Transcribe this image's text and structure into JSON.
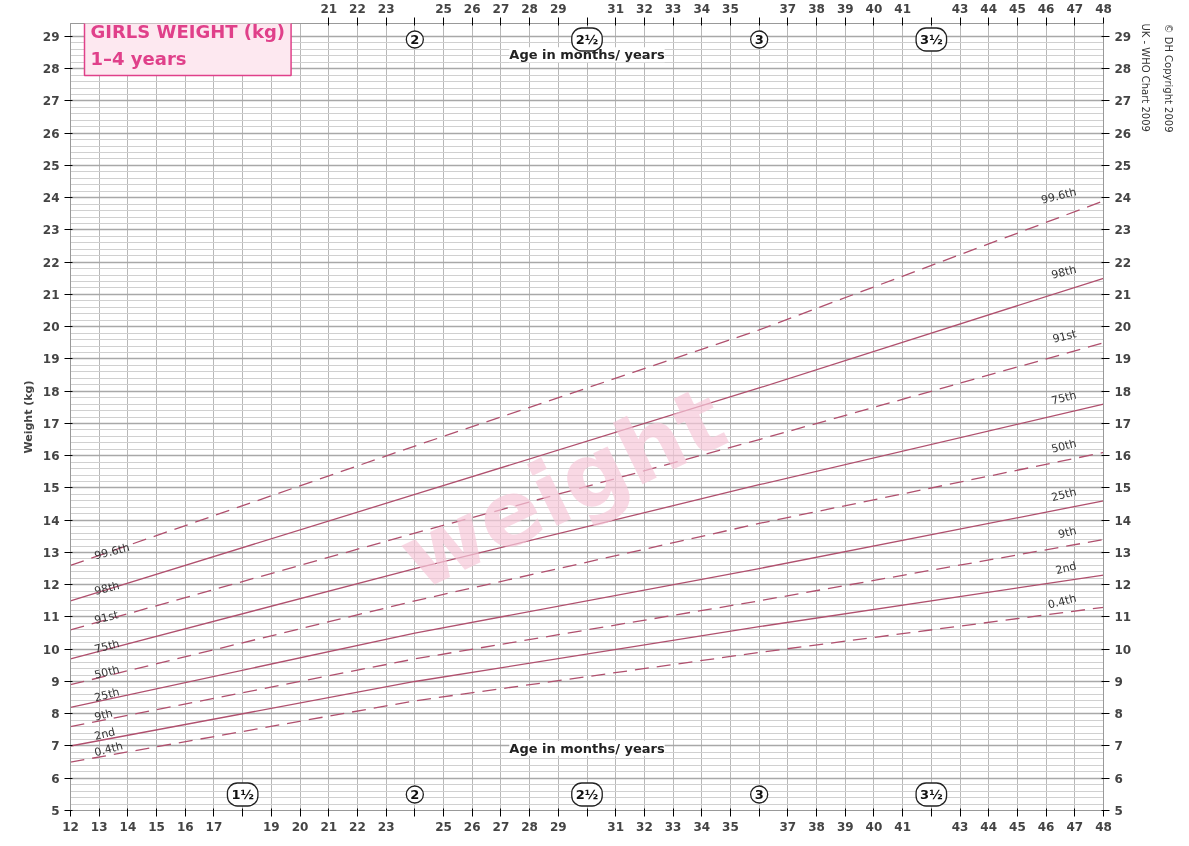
{
  "chart_data": {
    "type": "line",
    "title": "GIRLS WEIGHT (kg)",
    "subtitle": "1–4 years",
    "xlabel": "Age in months/ years",
    "x2label": "Age in months/ years",
    "ylabel": "Weight (kg)",
    "x": [
      12,
      24,
      36,
      48
    ],
    "series": [
      {
        "name": "99.6th",
        "color": "#b0506e",
        "line_style": "dashed",
        "values": [
          12.6,
          16.3,
          19.9,
          23.9
        ]
      },
      {
        "name": "98th",
        "color": "#b0506e",
        "line_style": "solid",
        "values": [
          11.5,
          14.8,
          18.1,
          21.5
        ]
      },
      {
        "name": "91st",
        "color": "#b0506e",
        "line_style": "dashed",
        "values": [
          10.6,
          13.6,
          16.5,
          19.5
        ]
      },
      {
        "name": "75th",
        "color": "#b0506e",
        "line_style": "solid",
        "values": [
          9.7,
          12.5,
          15.1,
          17.6
        ]
      },
      {
        "name": "50th",
        "color": "#b0506e",
        "line_style": "dashed",
        "values": [
          8.9,
          11.5,
          13.9,
          16.1
        ]
      },
      {
        "name": "25th",
        "color": "#b0506e",
        "line_style": "solid",
        "values": [
          8.2,
          10.5,
          12.5,
          14.6
        ]
      },
      {
        "name": "9th",
        "color": "#b0506e",
        "line_style": "dashed",
        "values": [
          7.6,
          9.7,
          11.5,
          13.4
        ]
      },
      {
        "name": "2nd",
        "color": "#b0506e",
        "line_style": "solid",
        "values": [
          7.0,
          9.0,
          10.7,
          12.3
        ]
      },
      {
        "name": "0.4th",
        "color": "#b0506e",
        "line_style": "dashed",
        "values": [
          6.5,
          8.4,
          9.9,
          11.3
        ]
      }
    ],
    "xlim": [
      12,
      48
    ],
    "ylim": [
      5,
      29.4
    ],
    "y2lim": [
      5,
      29.4
    ],
    "x2lim": [
      12,
      48
    ],
    "xticks": [
      12,
      13,
      14,
      15,
      16,
      17,
      {
        "value": 18,
        "label": null
      },
      19,
      20,
      21,
      22,
      23,
      {
        "value": 24,
        "label": null
      },
      25,
      26,
      27,
      28,
      29,
      {
        "value": 30,
        "label": null
      },
      31,
      32,
      33,
      34,
      35,
      {
        "value": 36,
        "label": null
      },
      37,
      38,
      39,
      40,
      41,
      {
        "value": 42,
        "label": null
      },
      43,
      44,
      45,
      46,
      47,
      48
    ],
    "x2ticks": [
      21,
      22,
      23,
      {
        "value": 24,
        "label": null
      },
      25,
      26,
      27,
      28,
      29,
      {
        "value": 30,
        "label": null
      },
      31,
      32,
      33,
      34,
      35,
      {
        "value": 36,
        "label": null
      },
      37,
      38,
      39,
      40,
      41,
      {
        "value": 42,
        "label": null
      },
      43,
      44,
      45,
      46,
      47,
      48
    ],
    "yticks": [
      5,
      6,
      7,
      8,
      9,
      10,
      11,
      12,
      13,
      14,
      15,
      16,
      17,
      18,
      19,
      20,
      21,
      22,
      23,
      24,
      25,
      26,
      27,
      28,
      29
    ],
    "y2ticks": [
      5,
      6,
      7,
      8,
      9,
      10,
      11,
      12,
      13,
      14,
      15,
      16,
      17,
      18,
      19,
      20,
      21,
      22,
      23,
      24,
      25,
      26,
      27,
      28,
      29
    ],
    "grid": true,
    "annotations": [
      "weight",
      "UK - WHO Chart 2009",
      "© DH Copyright 2009",
      "1½",
      "2",
      "2½",
      "3",
      "3½",
      "2",
      "2½",
      "3",
      "3½"
    ]
  }
}
